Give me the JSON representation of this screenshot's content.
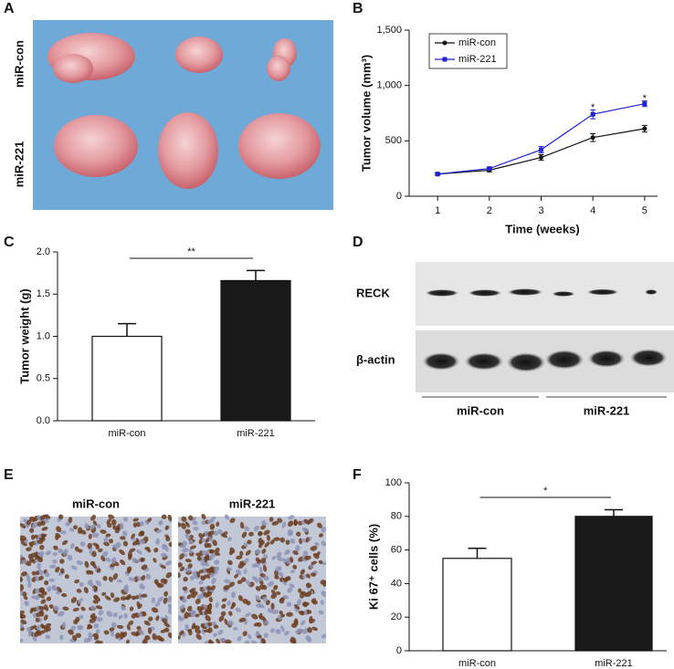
{
  "panel_labels": [
    "A",
    "B",
    "C",
    "D",
    "E",
    "F"
  ],
  "panel_a": {
    "row_labels": [
      "miR-con",
      "miR-221"
    ]
  },
  "panel_d": {
    "bands": [
      "RECK",
      "β-actin"
    ],
    "groups": [
      "miR-con",
      "miR-221"
    ]
  },
  "panel_e": {
    "titles": [
      "miR-con",
      "miR-221"
    ]
  },
  "chart_data": [
    {
      "type": "line",
      "x_label": "Time (weeks)",
      "y_label": "Tumor volume (mm³)",
      "x": [
        1,
        2,
        3,
        4,
        5
      ],
      "xlim": [
        0.45,
        5.25
      ],
      "xticks": [
        1,
        2,
        3,
        4,
        5
      ],
      "ylim": [
        0,
        1500
      ],
      "yticks": [
        0,
        500,
        {
          "value": 1000,
          "label": "1,000"
        },
        {
          "value": 1500,
          "label": "1,500"
        }
      ],
      "series": [
        {
          "name": "miR-con",
          "color": "#111111",
          "values": [
            200,
            235,
            350,
            530,
            610
          ],
          "errors": [
            10,
            15,
            25,
            35,
            30
          ]
        },
        {
          "name": "miR-221",
          "color": "#2222cc",
          "values": [
            200,
            250,
            420,
            740,
            835
          ],
          "errors": [
            10,
            12,
            30,
            40,
            25
          ]
        }
      ],
      "annotations": [
        {
          "text": "*",
          "x": 4,
          "y": 800
        },
        {
          "text": "*",
          "x": 5,
          "y": 880
        }
      ]
    },
    {
      "type": "bar",
      "y_label": "Tumor weight (g)",
      "categories": [
        "miR-con",
        "miR-221"
      ],
      "values": [
        1.0,
        1.66
      ],
      "errors": [
        0.15,
        0.12
      ],
      "colors": [
        "#ffffff",
        "#1a1a1a"
      ],
      "ylim": [
        0,
        2.0
      ],
      "yticks": [
        {
          "value": 0,
          "label": "0.0"
        },
        {
          "value": 0.5,
          "label": "0.5"
        },
        {
          "value": 1,
          "label": "1.0"
        },
        {
          "value": 1.5,
          "label": "1.5"
        },
        {
          "value": 2,
          "label": "2.0"
        }
      ],
      "annotation": "**"
    },
    {
      "type": "bar",
      "y_label": "Ki 67⁺ cells (%)",
      "categories": [
        "miR-con",
        "miR-221"
      ],
      "values": [
        55,
        80
      ],
      "errors": [
        6,
        4
      ],
      "colors": [
        "#ffffff",
        "#1a1a1a"
      ],
      "ylim": [
        0,
        100
      ],
      "yticks": [
        0,
        20,
        40,
        60,
        80,
        100
      ],
      "annotation": "*"
    }
  ]
}
